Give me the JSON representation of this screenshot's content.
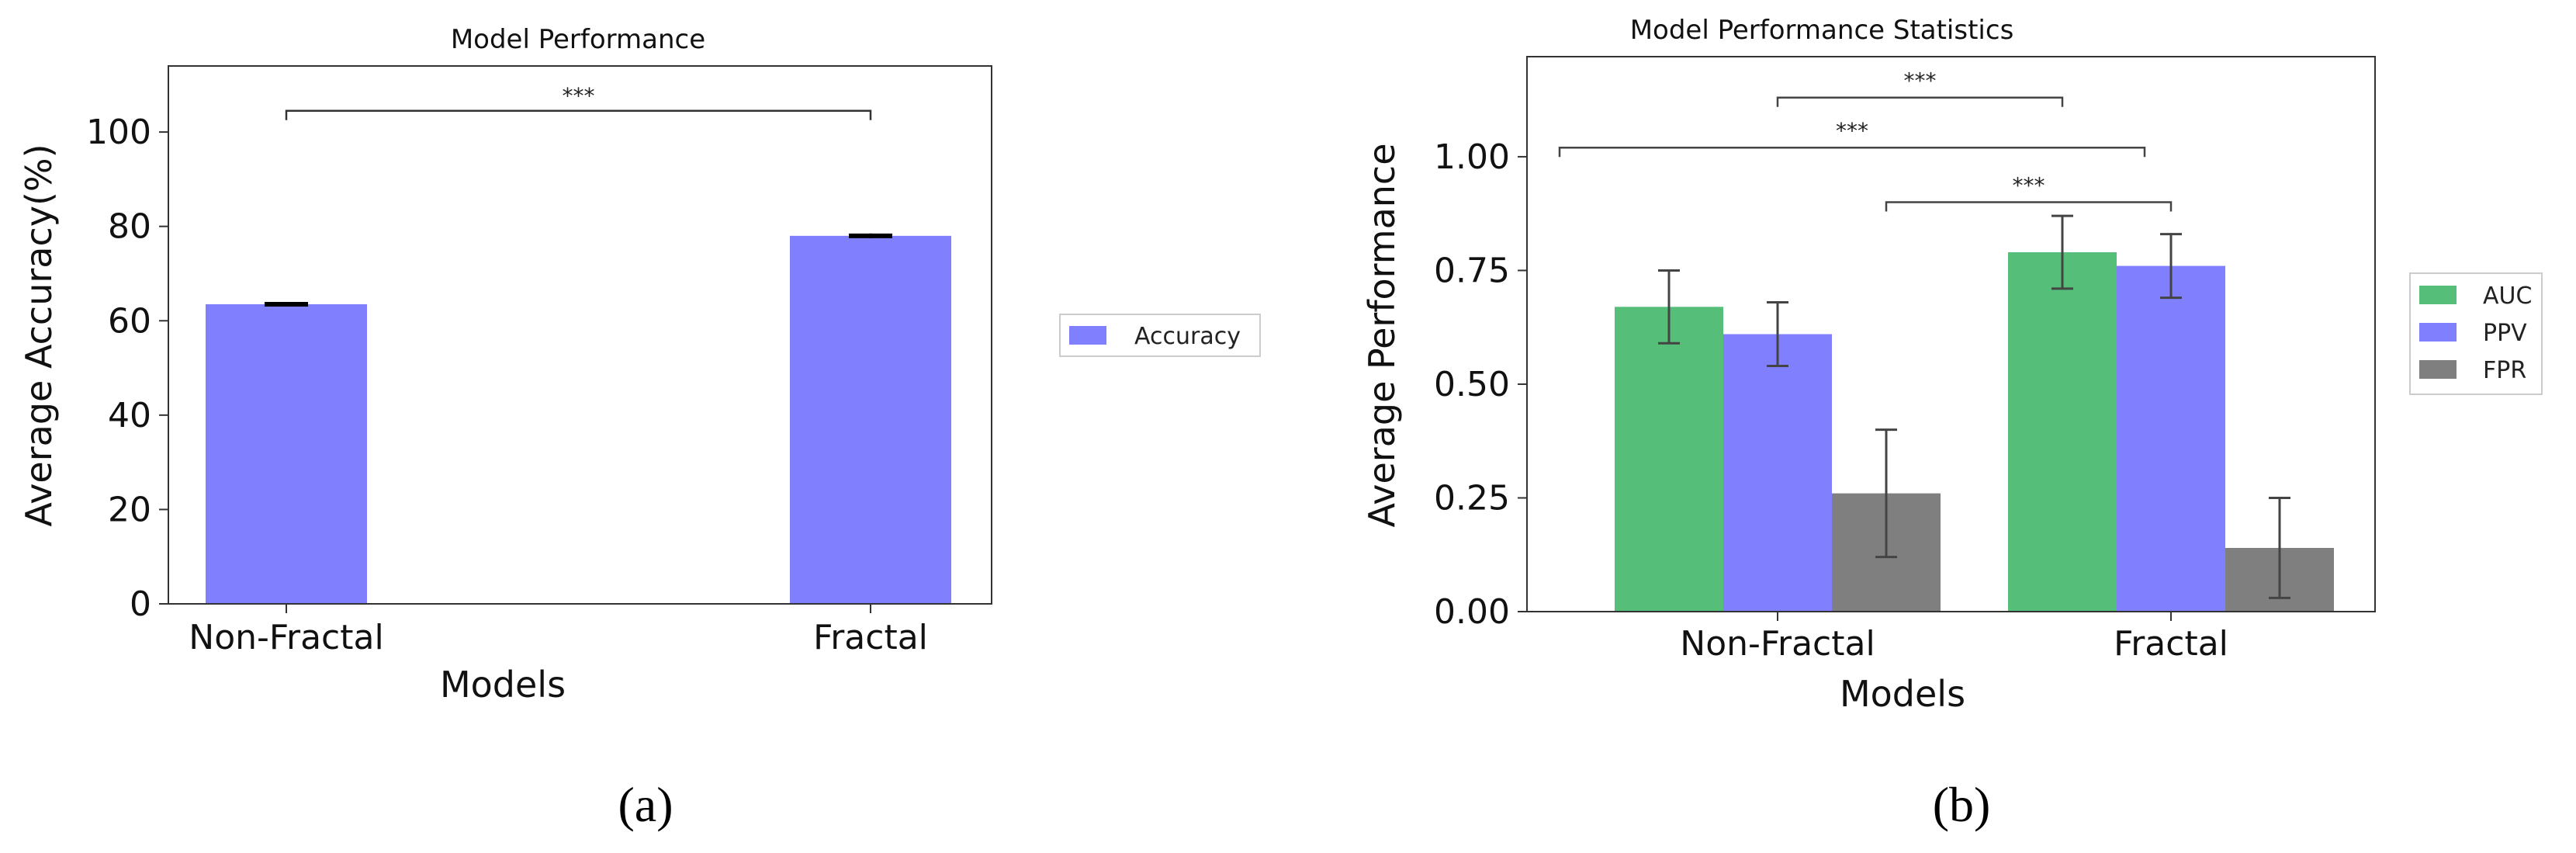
{
  "chart_data": [
    {
      "type": "bar",
      "title": "Model Performance",
      "xlabel": "Models",
      "ylabel": "Average Accuracy(%)",
      "categories": [
        "Non-Fractal",
        "Fractal"
      ],
      "ylim": [
        0,
        114
      ],
      "yticks": [
        0,
        20,
        40,
        60,
        80,
        100
      ],
      "series": [
        {
          "name": "Accuracy",
          "color": "#8080ff",
          "values": [
            63.5,
            78.0
          ],
          "errors": [
            0.4,
            0.5
          ]
        }
      ],
      "annotations": [
        {
          "label": "***",
          "from": "Non-Fractal",
          "to": "Fractal",
          "y": 104.5
        }
      ],
      "legend_position": "right-outside",
      "grid": false,
      "caption": "(a)"
    },
    {
      "type": "bar",
      "title": "Model Performance Statistics",
      "xlabel": "Models",
      "ylabel": "Average Performance",
      "categories": [
        "Non-Fractal",
        "Fractal"
      ],
      "ylim": [
        0,
        1.22
      ],
      "yticks": [
        0.0,
        0.25,
        0.5,
        0.75,
        1.0
      ],
      "series": [
        {
          "name": "AUC",
          "color": "#55be78",
          "values": [
            0.67,
            0.79
          ],
          "errors": [
            0.08,
            0.08
          ]
        },
        {
          "name": "PPV",
          "color": "#8080ff",
          "values": [
            0.61,
            0.76
          ],
          "errors": [
            0.07,
            0.07
          ]
        },
        {
          "name": "FPR",
          "color": "#7f7f7f",
          "values": [
            0.26,
            0.14
          ],
          "errors": [
            0.14,
            0.11
          ]
        }
      ],
      "annotations": [
        {
          "label": "***",
          "from_bar": [
            0,
            "PPV"
          ],
          "to_bar": [
            1,
            "AUC"
          ],
          "y": 1.13
        },
        {
          "label": "***",
          "from_bar": [
            0,
            "edge"
          ],
          "to_bar": [
            1,
            "edge"
          ],
          "y": 1.02
        },
        {
          "label": "***",
          "from_bar": [
            0,
            "FPR"
          ],
          "to_bar": [
            1,
            "PPV"
          ],
          "y": 0.9
        }
      ],
      "legend_position": "right-outside",
      "grid": false,
      "caption": "(b)"
    }
  ]
}
